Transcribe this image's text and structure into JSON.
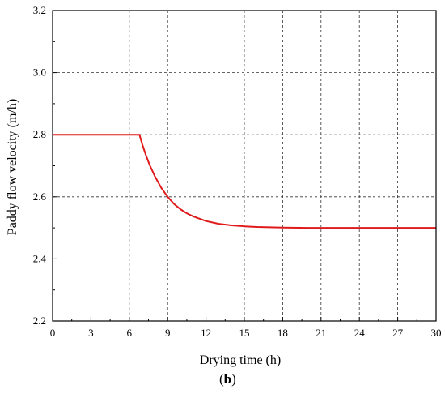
{
  "chart_data": {
    "type": "line",
    "xlabel": "Drying time (h)",
    "ylabel": "Paddy flow velocity (m/h)",
    "xlim": [
      0,
      30
    ],
    "ylim": [
      2.2,
      3.2
    ],
    "xticks": [
      "0",
      "3",
      "6",
      "9",
      "12",
      "15",
      "18",
      "21",
      "24",
      "27",
      "30"
    ],
    "yticks": [
      "2.2",
      "2.4",
      "2.6",
      "2.8",
      "3.0",
      "3.2"
    ],
    "grid": true,
    "series": [
      {
        "color": "#e01a1a",
        "x": [
          0,
          6.8,
          7.0,
          7.3,
          7.6,
          8.0,
          8.5,
          9.0,
          9.5,
          10.0,
          10.5,
          11.0,
          12.0,
          13.0,
          14.0,
          15.0,
          16.0,
          17.0,
          18.0,
          20.0,
          22.0,
          24.0,
          26.0,
          28.0,
          30.0
        ],
        "y": [
          2.8,
          2.8,
          2.771,
          2.734,
          2.702,
          2.666,
          2.629,
          2.6,
          2.577,
          2.56,
          2.547,
          2.537,
          2.522,
          2.513,
          2.508,
          2.505,
          2.503,
          2.502,
          2.501,
          2.5,
          2.5,
          2.5,
          2.5,
          2.5,
          2.5
        ]
      }
    ]
  },
  "caption": {
    "open": "(",
    "letter": "b",
    "close": ")"
  }
}
